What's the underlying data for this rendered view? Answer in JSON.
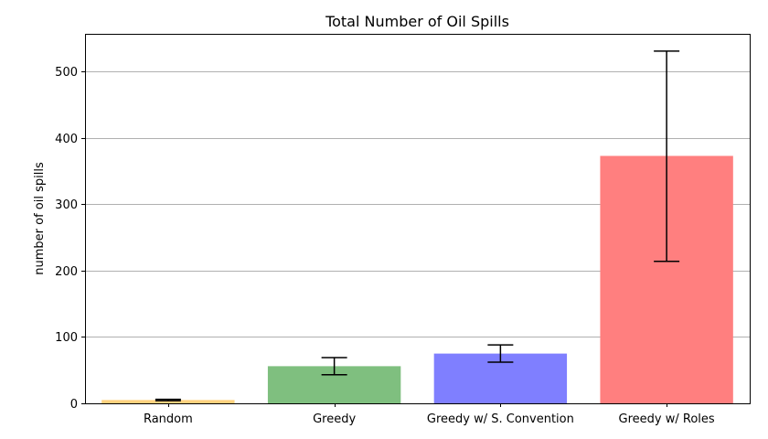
{
  "chart_data": {
    "type": "bar",
    "title": "Total Number of Oil Spills",
    "xlabel": "",
    "ylabel": "number of oil spills",
    "categories": [
      "Random",
      "Greedy",
      "Greedy w/ S. Convention",
      "Greedy w/ Roles"
    ],
    "values": [
      5,
      56,
      75,
      373
    ],
    "error_low": [
      4,
      43,
      62,
      214
    ],
    "error_high": [
      6,
      69,
      88,
      531
    ],
    "colors": [
      "#ffd27f",
      "#7fbf7f",
      "#7f7fff",
      "#ff7f7f"
    ],
    "ylim": [
      0,
      557
    ],
    "yticks": [
      0,
      100,
      200,
      300,
      400,
      500
    ],
    "grid": "y",
    "legend": "none"
  }
}
